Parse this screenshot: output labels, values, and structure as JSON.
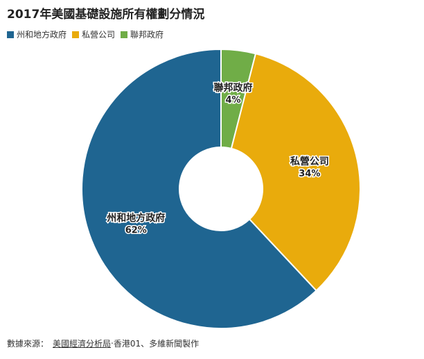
{
  "title": "2017年美國基礎設施所有權劃分情況",
  "source": {
    "prefix": "數據來源：",
    "link": "美國經濟分析局",
    "suffix": "‧香港01、多維新聞製作"
  },
  "chart_data": {
    "type": "pie",
    "variant": "donut",
    "title": "2017年美國基礎設施所有權劃分情況",
    "legend_position": "top-left",
    "slices": [
      {
        "label": "聯邦政府",
        "value": 4,
        "display": "4%",
        "color": "#70ad47"
      },
      {
        "label": "私營公司",
        "value": 34,
        "display": "34%",
        "color": "#e9ab0c"
      },
      {
        "label": "州和地方政府",
        "value": 62,
        "display": "62%",
        "color": "#1f6591"
      }
    ],
    "legend_order": [
      "州和地方政府",
      "私營公司",
      "聯邦政府"
    ]
  }
}
